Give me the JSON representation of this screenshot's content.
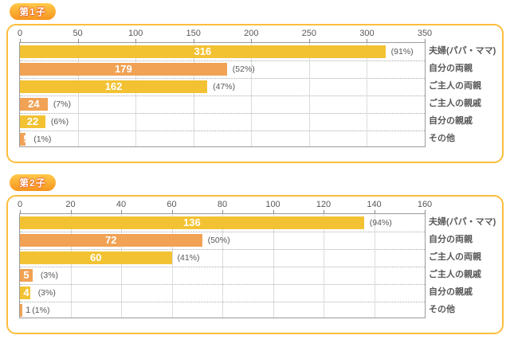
{
  "page": {
    "background": "#ffffff"
  },
  "colors": {
    "bar_yellow": "#F2C233",
    "bar_orange": "#F1A254",
    "panel_border": "#FCBE3C",
    "badge_gradient_top": "#FFC94A",
    "badge_gradient_bottom": "#F7941E",
    "badge_text": "#FFFFFF",
    "badge_text_outline": "#E8641E",
    "axis_text": "#595757",
    "label_text": "#595757",
    "value_text": "#FFFFFF",
    "gridline": "#DCDCDC",
    "plot_border": "#9B9B9B",
    "row_separator": "#ABABAB",
    "tick_mark": "#8A8A8A"
  },
  "chart_data": [
    {
      "type": "bar",
      "orientation": "horizontal",
      "title": "第1子",
      "xlim": [
        0,
        350
      ],
      "ticks": [
        0,
        50,
        100,
        150,
        200,
        250,
        300,
        350
      ],
      "grid": true,
      "legend": "none",
      "categories": [
        "夫婦(パパ・ママ)",
        "自分の両親",
        "ご主人の両親",
        "ご主人の親戚",
        "自分の親戚",
        "その他"
      ],
      "values": [
        316,
        179,
        162,
        24,
        22,
        5
      ],
      "percent_labels": [
        "(91%)",
        "(52%)",
        "(47%)",
        "(7%)",
        "(6%)",
        "(1%)"
      ],
      "value_label_inside": [
        true,
        true,
        true,
        true,
        true,
        true
      ],
      "bar_color_pattern": [
        "yellow",
        "orange",
        "yellow",
        "orange",
        "yellow",
        "orange"
      ]
    },
    {
      "type": "bar",
      "orientation": "horizontal",
      "title": "第2子",
      "xlim": [
        0,
        160
      ],
      "ticks": [
        0,
        20,
        40,
        60,
        80,
        100,
        120,
        140,
        160
      ],
      "grid": true,
      "legend": "none",
      "categories": [
        "夫婦(パパ・ママ)",
        "自分の両親",
        "ご主人の両親",
        "ご主人の親戚",
        "自分の親戚",
        "その他"
      ],
      "values": [
        136,
        72,
        60,
        5,
        4,
        1
      ],
      "percent_labels": [
        "(94%)",
        "(50%)",
        "(41%)",
        "(3%)",
        "(3%)",
        "(1%)"
      ],
      "value_label_inside": [
        true,
        true,
        true,
        true,
        true,
        false
      ],
      "bar_color_pattern": [
        "yellow",
        "orange",
        "yellow",
        "orange",
        "yellow",
        "orange"
      ]
    }
  ]
}
